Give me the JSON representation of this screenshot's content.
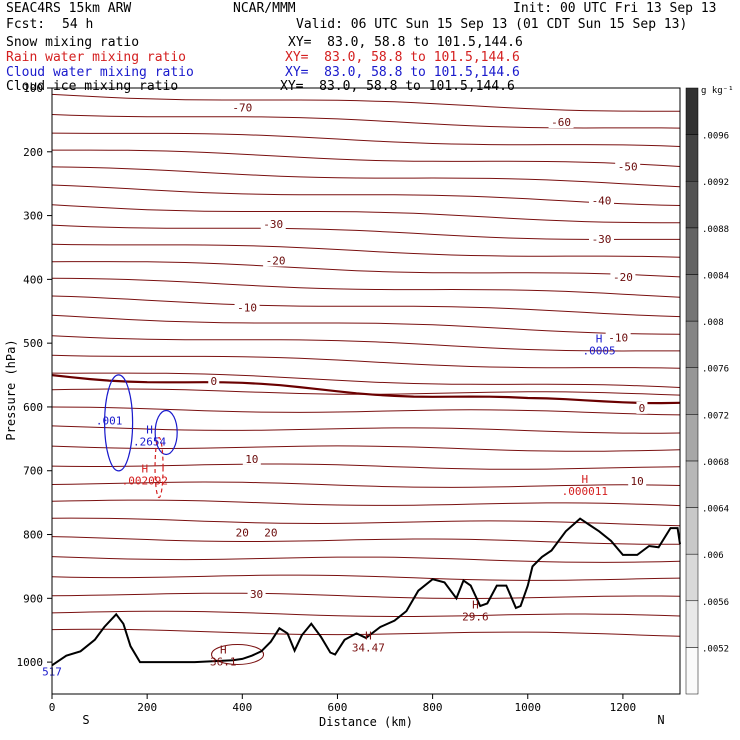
{
  "header": {
    "model": "SEAC4RS 15km ARW",
    "org": "NCAR/MMM",
    "init": "Init: 00 UTC Fri 13 Sep 13",
    "fcst_label": "Fcst:",
    "fcst_value": "54 h",
    "valid": "Valid: 06 UTC Sun 15 Sep 13 (01 CDT Sun 15 Sep 13)"
  },
  "fields": [
    {
      "name": "Snow mixing ratio",
      "xy": "XY=  83.0, 58.8 to 101.5,144.6",
      "color": "#000000"
    },
    {
      "name": "Rain water mixing ratio",
      "xy": "XY=  83.0, 58.8 to 101.5,144.6",
      "color": "#d42020"
    },
    {
      "name": "Cloud water mixing ratio",
      "xy": "XY=  83.0, 58.8 to 101.5,144.6",
      "color": "#1a1acc"
    },
    {
      "name": "Cloud ice mixing ratio",
      "xy": "XY=  83.0, 58.8 to 101.5,144.6",
      "color": "#000000"
    }
  ],
  "chart_data": {
    "type": "line",
    "xlabel": "Distance (km)",
    "ylabel": "Pressure (hPa)",
    "xlim": [
      0,
      1320
    ],
    "ylim": [
      1050,
      100
    ],
    "x_ticks": [
      0,
      200,
      400,
      600,
      800,
      1000,
      1200
    ],
    "y_ticks": [
      100,
      200,
      300,
      400,
      500,
      600,
      700,
      800,
      900,
      1000
    ],
    "x_end_labels": {
      "left": "S",
      "right": "N"
    },
    "colorbar": {
      "unit": "g kg⁻¹",
      "ticks": [
        ".0052",
        ".0056",
        ".006",
        ".0064",
        ".0068",
        ".0072",
        ".0076",
        ".008",
        ".0084",
        ".0088",
        ".0092",
        ".0096"
      ]
    },
    "isotherm_labels": [
      {
        "x": 400,
        "p": 132,
        "text": "-70"
      },
      {
        "x": 1070,
        "p": 155,
        "text": "-60"
      },
      {
        "x": 1210,
        "p": 225,
        "text": "-50"
      },
      {
        "x": 1155,
        "p": 278,
        "text": "-40"
      },
      {
        "x": 465,
        "p": 315,
        "text": "-30"
      },
      {
        "x": 1155,
        "p": 338,
        "text": "-30"
      },
      {
        "x": 470,
        "p": 372,
        "text": "-20"
      },
      {
        "x": 1200,
        "p": 398,
        "text": "-20"
      },
      {
        "x": 410,
        "p": 446,
        "text": "-10"
      },
      {
        "x": 1190,
        "p": 493,
        "text": "-10"
      },
      {
        "x": 340,
        "p": 561,
        "text": "0"
      },
      {
        "x": 1240,
        "p": 603,
        "text": "0"
      },
      {
        "x": 420,
        "p": 683,
        "text": "10"
      },
      {
        "x": 1230,
        "p": 718,
        "text": "10"
      },
      {
        "x": 400,
        "p": 798,
        "text": "20"
      },
      {
        "x": 460,
        "p": 798,
        "text": "20"
      },
      {
        "x": 430,
        "p": 895,
        "text": "30"
      }
    ],
    "extrema": [
      {
        "x": 205,
        "p": 645,
        "text": "H",
        "value": ".2654",
        "color": "#1a1acc"
      },
      {
        "x": 195,
        "p": 706,
        "text": "H",
        "value": ".002092",
        "color": "#d42020"
      },
      {
        "x": 1150,
        "p": 502,
        "text": "H",
        "value": ".0005",
        "color": "#1a1acc"
      },
      {
        "x": 1120,
        "p": 722,
        "text": "H",
        "value": ".000011",
        "color": "#d42020"
      },
      {
        "x": 120,
        "p": 612,
        "text": "",
        "value": ".001",
        "color": "#1a1acc"
      },
      {
        "x": 0,
        "p": 1005,
        "text": "",
        "value": "517",
        "color": "#1a1acc"
      },
      {
        "x": 360,
        "p": 990,
        "text": "H",
        "value": "36.1",
        "color": "#7a1010"
      },
      {
        "x": 665,
        "p": 968,
        "text": "H",
        "value": "34.47",
        "color": "#7a1010"
      },
      {
        "x": 890,
        "p": 919,
        "text": "H",
        "value": "29.6",
        "color": "#7a1010"
      }
    ],
    "terrain": [
      [
        0,
        1005
      ],
      [
        30,
        990
      ],
      [
        60,
        983
      ],
      [
        90,
        965
      ],
      [
        110,
        945
      ],
      [
        135,
        925
      ],
      [
        150,
        940
      ],
      [
        165,
        975
      ],
      [
        185,
        1000
      ],
      [
        300,
        1000
      ],
      [
        380,
        997
      ],
      [
        400,
        995
      ],
      [
        420,
        990
      ],
      [
        440,
        983
      ],
      [
        460,
        968
      ],
      [
        478,
        947
      ],
      [
        495,
        955
      ],
      [
        510,
        982
      ],
      [
        525,
        958
      ],
      [
        545,
        940
      ],
      [
        565,
        960
      ],
      [
        585,
        985
      ],
      [
        595,
        988
      ],
      [
        615,
        965
      ],
      [
        640,
        955
      ],
      [
        660,
        962
      ],
      [
        690,
        945
      ],
      [
        720,
        935
      ],
      [
        745,
        920
      ],
      [
        770,
        888
      ],
      [
        800,
        870
      ],
      [
        825,
        875
      ],
      [
        850,
        900
      ],
      [
        865,
        872
      ],
      [
        880,
        880
      ],
      [
        900,
        912
      ],
      [
        915,
        908
      ],
      [
        935,
        880
      ],
      [
        955,
        880
      ],
      [
        975,
        915
      ],
      [
        985,
        912
      ],
      [
        1000,
        880
      ],
      [
        1010,
        850
      ],
      [
        1030,
        835
      ],
      [
        1050,
        825
      ],
      [
        1080,
        795
      ],
      [
        1110,
        775
      ],
      [
        1130,
        785
      ],
      [
        1150,
        795
      ],
      [
        1175,
        810
      ],
      [
        1200,
        832
      ],
      [
        1230,
        832
      ],
      [
        1255,
        818
      ],
      [
        1275,
        820
      ],
      [
        1300,
        790
      ],
      [
        1315,
        790
      ],
      [
        1320,
        815
      ]
    ]
  }
}
